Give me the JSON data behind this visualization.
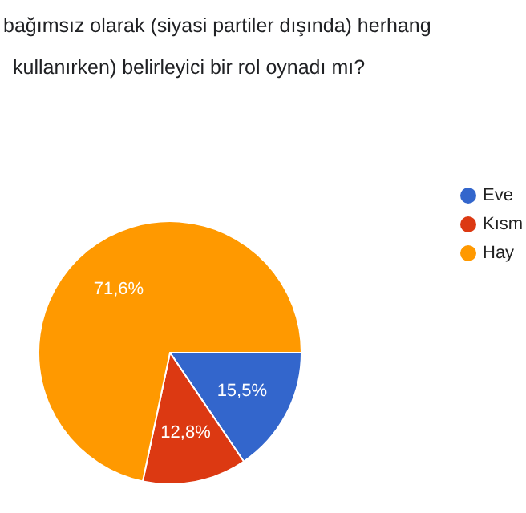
{
  "chart_data": {
    "type": "pie",
    "title": "bağımsız olarak (siyasi partiler dışında) herhang\nkullanırken) belirleyici bir rol oynadı mı?",
    "categories": [
      "Eve",
      "Kısm",
      "Hay"
    ],
    "values": [
      15.5,
      12.8,
      71.6
    ],
    "value_labels": [
      "15,5%",
      "12,8%",
      "71,6%"
    ],
    "colors": [
      "#3366cc",
      "#dc3912",
      "#ff9900"
    ],
    "legend": "right"
  }
}
